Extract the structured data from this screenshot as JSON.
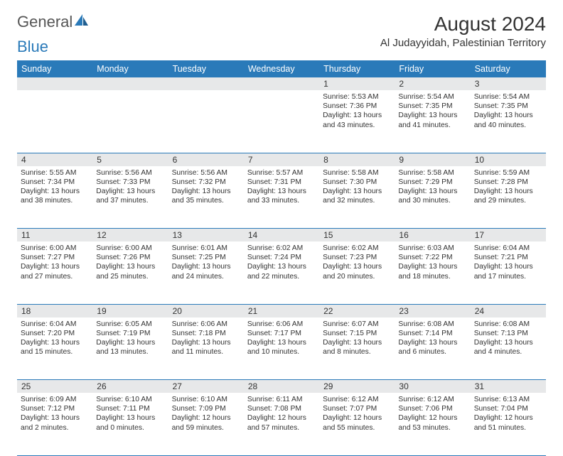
{
  "logo": {
    "text1": "General",
    "text2": "Blue"
  },
  "title": "August 2024",
  "location": "Al Judayyidah, Palestinian Territory",
  "colors": {
    "header_bg": "#2a7ab9",
    "header_text": "#ffffff",
    "daynum_bg": "#e7e8e9",
    "border": "#2a7ab9",
    "page_bg": "#ffffff",
    "text": "#333333"
  },
  "typography": {
    "title_fontsize": 28,
    "location_fontsize": 15,
    "dayheader_fontsize": 12.5,
    "daynum_fontsize": 12,
    "body_fontsize": 10.3
  },
  "day_headers": [
    "Sunday",
    "Monday",
    "Tuesday",
    "Wednesday",
    "Thursday",
    "Friday",
    "Saturday"
  ],
  "weeks": [
    [
      {
        "n": "",
        "sr": "",
        "ss": "",
        "dl": ""
      },
      {
        "n": "",
        "sr": "",
        "ss": "",
        "dl": ""
      },
      {
        "n": "",
        "sr": "",
        "ss": "",
        "dl": ""
      },
      {
        "n": "",
        "sr": "",
        "ss": "",
        "dl": ""
      },
      {
        "n": "1",
        "sr": "Sunrise: 5:53 AM",
        "ss": "Sunset: 7:36 PM",
        "dl": "Daylight: 13 hours and 43 minutes."
      },
      {
        "n": "2",
        "sr": "Sunrise: 5:54 AM",
        "ss": "Sunset: 7:35 PM",
        "dl": "Daylight: 13 hours and 41 minutes."
      },
      {
        "n": "3",
        "sr": "Sunrise: 5:54 AM",
        "ss": "Sunset: 7:35 PM",
        "dl": "Daylight: 13 hours and 40 minutes."
      }
    ],
    [
      {
        "n": "4",
        "sr": "Sunrise: 5:55 AM",
        "ss": "Sunset: 7:34 PM",
        "dl": "Daylight: 13 hours and 38 minutes."
      },
      {
        "n": "5",
        "sr": "Sunrise: 5:56 AM",
        "ss": "Sunset: 7:33 PM",
        "dl": "Daylight: 13 hours and 37 minutes."
      },
      {
        "n": "6",
        "sr": "Sunrise: 5:56 AM",
        "ss": "Sunset: 7:32 PM",
        "dl": "Daylight: 13 hours and 35 minutes."
      },
      {
        "n": "7",
        "sr": "Sunrise: 5:57 AM",
        "ss": "Sunset: 7:31 PM",
        "dl": "Daylight: 13 hours and 33 minutes."
      },
      {
        "n": "8",
        "sr": "Sunrise: 5:58 AM",
        "ss": "Sunset: 7:30 PM",
        "dl": "Daylight: 13 hours and 32 minutes."
      },
      {
        "n": "9",
        "sr": "Sunrise: 5:58 AM",
        "ss": "Sunset: 7:29 PM",
        "dl": "Daylight: 13 hours and 30 minutes."
      },
      {
        "n": "10",
        "sr": "Sunrise: 5:59 AM",
        "ss": "Sunset: 7:28 PM",
        "dl": "Daylight: 13 hours and 29 minutes."
      }
    ],
    [
      {
        "n": "11",
        "sr": "Sunrise: 6:00 AM",
        "ss": "Sunset: 7:27 PM",
        "dl": "Daylight: 13 hours and 27 minutes."
      },
      {
        "n": "12",
        "sr": "Sunrise: 6:00 AM",
        "ss": "Sunset: 7:26 PM",
        "dl": "Daylight: 13 hours and 25 minutes."
      },
      {
        "n": "13",
        "sr": "Sunrise: 6:01 AM",
        "ss": "Sunset: 7:25 PM",
        "dl": "Daylight: 13 hours and 24 minutes."
      },
      {
        "n": "14",
        "sr": "Sunrise: 6:02 AM",
        "ss": "Sunset: 7:24 PM",
        "dl": "Daylight: 13 hours and 22 minutes."
      },
      {
        "n": "15",
        "sr": "Sunrise: 6:02 AM",
        "ss": "Sunset: 7:23 PM",
        "dl": "Daylight: 13 hours and 20 minutes."
      },
      {
        "n": "16",
        "sr": "Sunrise: 6:03 AM",
        "ss": "Sunset: 7:22 PM",
        "dl": "Daylight: 13 hours and 18 minutes."
      },
      {
        "n": "17",
        "sr": "Sunrise: 6:04 AM",
        "ss": "Sunset: 7:21 PM",
        "dl": "Daylight: 13 hours and 17 minutes."
      }
    ],
    [
      {
        "n": "18",
        "sr": "Sunrise: 6:04 AM",
        "ss": "Sunset: 7:20 PM",
        "dl": "Daylight: 13 hours and 15 minutes."
      },
      {
        "n": "19",
        "sr": "Sunrise: 6:05 AM",
        "ss": "Sunset: 7:19 PM",
        "dl": "Daylight: 13 hours and 13 minutes."
      },
      {
        "n": "20",
        "sr": "Sunrise: 6:06 AM",
        "ss": "Sunset: 7:18 PM",
        "dl": "Daylight: 13 hours and 11 minutes."
      },
      {
        "n": "21",
        "sr": "Sunrise: 6:06 AM",
        "ss": "Sunset: 7:17 PM",
        "dl": "Daylight: 13 hours and 10 minutes."
      },
      {
        "n": "22",
        "sr": "Sunrise: 6:07 AM",
        "ss": "Sunset: 7:15 PM",
        "dl": "Daylight: 13 hours and 8 minutes."
      },
      {
        "n": "23",
        "sr": "Sunrise: 6:08 AM",
        "ss": "Sunset: 7:14 PM",
        "dl": "Daylight: 13 hours and 6 minutes."
      },
      {
        "n": "24",
        "sr": "Sunrise: 6:08 AM",
        "ss": "Sunset: 7:13 PM",
        "dl": "Daylight: 13 hours and 4 minutes."
      }
    ],
    [
      {
        "n": "25",
        "sr": "Sunrise: 6:09 AM",
        "ss": "Sunset: 7:12 PM",
        "dl": "Daylight: 13 hours and 2 minutes."
      },
      {
        "n": "26",
        "sr": "Sunrise: 6:10 AM",
        "ss": "Sunset: 7:11 PM",
        "dl": "Daylight: 13 hours and 0 minutes."
      },
      {
        "n": "27",
        "sr": "Sunrise: 6:10 AM",
        "ss": "Sunset: 7:09 PM",
        "dl": "Daylight: 12 hours and 59 minutes."
      },
      {
        "n": "28",
        "sr": "Sunrise: 6:11 AM",
        "ss": "Sunset: 7:08 PM",
        "dl": "Daylight: 12 hours and 57 minutes."
      },
      {
        "n": "29",
        "sr": "Sunrise: 6:12 AM",
        "ss": "Sunset: 7:07 PM",
        "dl": "Daylight: 12 hours and 55 minutes."
      },
      {
        "n": "30",
        "sr": "Sunrise: 6:12 AM",
        "ss": "Sunset: 7:06 PM",
        "dl": "Daylight: 12 hours and 53 minutes."
      },
      {
        "n": "31",
        "sr": "Sunrise: 6:13 AM",
        "ss": "Sunset: 7:04 PM",
        "dl": "Daylight: 12 hours and 51 minutes."
      }
    ]
  ]
}
